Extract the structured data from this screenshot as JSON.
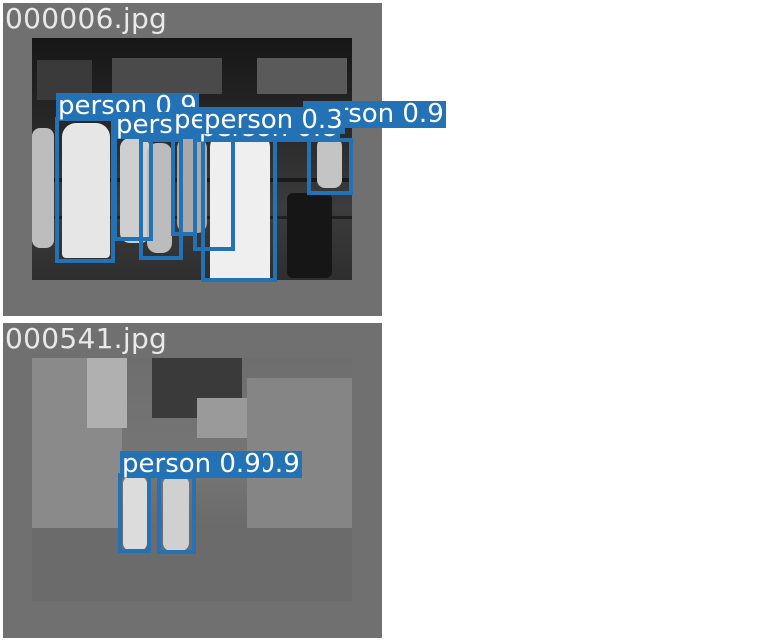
{
  "images": [
    {
      "filename": "000006.jpg",
      "detections": [
        {
          "label": "person 0.9"
        },
        {
          "label": "person 0.3"
        },
        {
          "label": "person 0.8"
        },
        {
          "label": "person 0.9"
        },
        {
          "label": "person 0.3"
        },
        {
          "label": "person 0.9"
        },
        {
          "label": "person 0.3"
        }
      ]
    },
    {
      "filename": "000541.jpg",
      "detections": [
        {
          "label": "person 0.9"
        },
        {
          "label": "person 0.9"
        }
      ]
    }
  ],
  "colors": {
    "box": "#2472b6",
    "panel": "#707070",
    "text": "#ffffff"
  }
}
